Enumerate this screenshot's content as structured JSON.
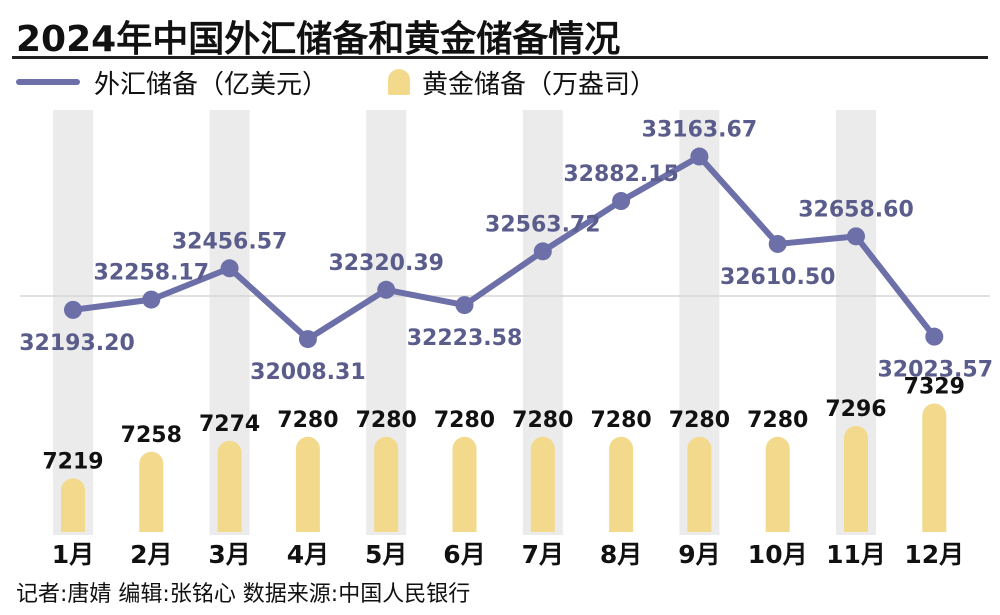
{
  "title": "2024年中国外汇储备和黄金储备情况",
  "legend": {
    "forex_label": "外汇储备（亿美元）",
    "gold_label": "黄金储备（万盎司）"
  },
  "credit": "记者:唐婧  编辑:张铭心  数据来源:中国人民银行",
  "colors": {
    "forex_line": "#6c6fa8",
    "gold_bar": "#f3d98b",
    "column_band": "#ebebeb",
    "value_label": "#5a5c8c"
  },
  "chart_data": {
    "type": "line+bar",
    "categories": [
      "1月",
      "2月",
      "3月",
      "4月",
      "5月",
      "6月",
      "7月",
      "8月",
      "9月",
      "10月",
      "11月",
      "12月"
    ],
    "series": [
      {
        "name": "外汇储备（亿美元）",
        "type": "line",
        "values": [
          32193.2,
          32258.17,
          32456.57,
          32008.31,
          32320.39,
          32223.58,
          32563.72,
          32882.15,
          33163.67,
          32610.5,
          32658.6,
          32023.57
        ],
        "labels": [
          "32193.20",
          "32258.17",
          "32456.57",
          "32008.31",
          "32320.39",
          "32223.58",
          "32563.72",
          "32882.15",
          "33163.67",
          "32610.50",
          "32658.60",
          "32023.57"
        ]
      },
      {
        "name": "黄金储备（万盎司）",
        "type": "bar",
        "values": [
          7219,
          7258,
          7274,
          7280,
          7280,
          7280,
          7280,
          7280,
          7280,
          7280,
          7296,
          7329
        ],
        "labels": [
          "7219",
          "7258",
          "7274",
          "7280",
          "7280",
          "7280",
          "7280",
          "7280",
          "7280",
          "7280",
          "7296",
          "7329"
        ]
      }
    ],
    "grid": false,
    "legend_position": "top-left"
  }
}
